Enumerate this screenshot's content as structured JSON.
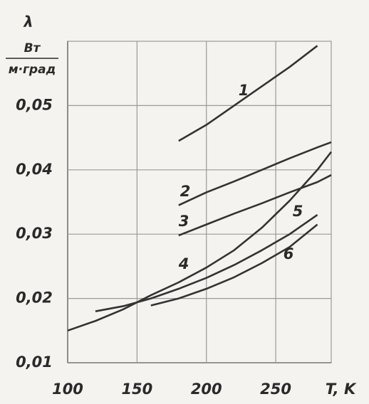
{
  "chart_data": {
    "type": "line",
    "y_label": "λ",
    "y_unit_top": "Вт",
    "y_unit_bottom": "м·град",
    "x_label": "T, K",
    "x": [
      100,
      120,
      140,
      160,
      180,
      200,
      220,
      240,
      260,
      280,
      290
    ],
    "series": [
      {
        "name": "1",
        "color": "#333333",
        "values": [
          null,
          null,
          null,
          null,
          0.0445,
          0.047,
          0.05,
          0.053,
          0.056,
          0.0593,
          null
        ]
      },
      {
        "name": "2",
        "color": "#333333",
        "values": [
          null,
          null,
          null,
          null,
          0.0345,
          0.0365,
          0.0382,
          0.04,
          0.0418,
          0.0435,
          0.0443
        ]
      },
      {
        "name": "3",
        "color": "#333333",
        "values": [
          null,
          null,
          null,
          null,
          0.0298,
          0.0315,
          0.0332,
          0.0348,
          0.0365,
          0.0381,
          0.0392
        ]
      },
      {
        "name": "4",
        "color": "#333333",
        "values": [
          0.015,
          0.0165,
          0.0183,
          0.0205,
          0.0225,
          0.0248,
          0.0275,
          0.031,
          0.0352,
          0.04,
          0.0428
        ]
      },
      {
        "name": "5",
        "color": "#333333",
        "values": [
          null,
          0.018,
          0.0188,
          0.02,
          0.0215,
          0.0232,
          0.0252,
          0.0275,
          0.03,
          0.033,
          null
        ]
      },
      {
        "name": "6",
        "color": "#333333",
        "values": [
          null,
          null,
          null,
          0.0189,
          0.02,
          0.0215,
          0.0233,
          0.0255,
          0.028,
          0.0315,
          null
        ]
      }
    ],
    "xlim": [
      100,
      290
    ],
    "ylim": [
      0.01,
      0.06
    ],
    "xticks": [
      100,
      150,
      200,
      250
    ],
    "yticks": [
      {
        "value": 0.01,
        "label": "0,01"
      },
      {
        "value": 0.02,
        "label": "0,02"
      },
      {
        "value": 0.03,
        "label": "0,03"
      },
      {
        "value": 0.04,
        "label": "0,04"
      },
      {
        "value": 0.05,
        "label": "0,05"
      }
    ],
    "grid": true
  }
}
